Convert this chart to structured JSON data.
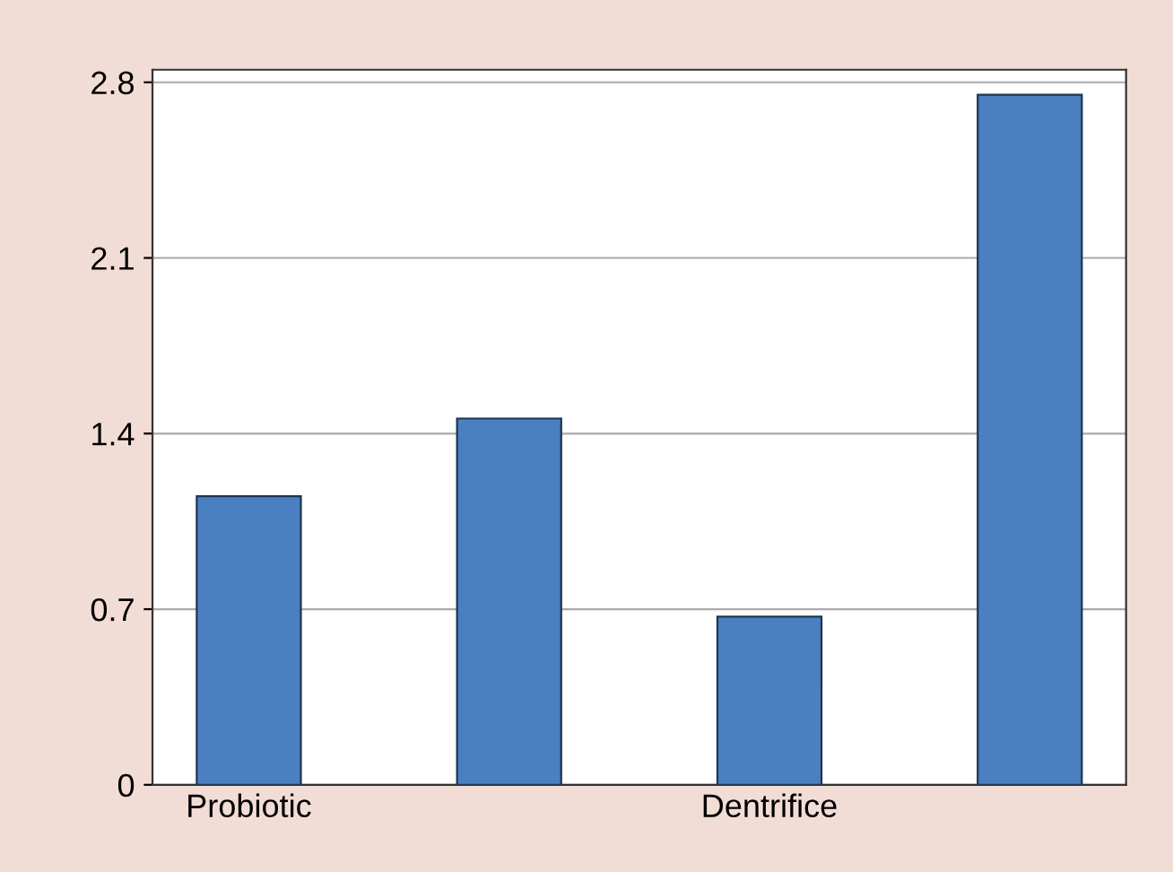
{
  "chart_data": {
    "type": "bar",
    "categories": [
      "Probiotic",
      null,
      "Dentrifice",
      null
    ],
    "values": [
      1.15,
      1.46,
      0.67,
      2.75
    ],
    "color": "#4a80c2",
    "ylim": [
      0,
      2.85
    ],
    "yticks": [
      0,
      0.7,
      1.4,
      2.1,
      2.8
    ],
    "grid": "y"
  }
}
